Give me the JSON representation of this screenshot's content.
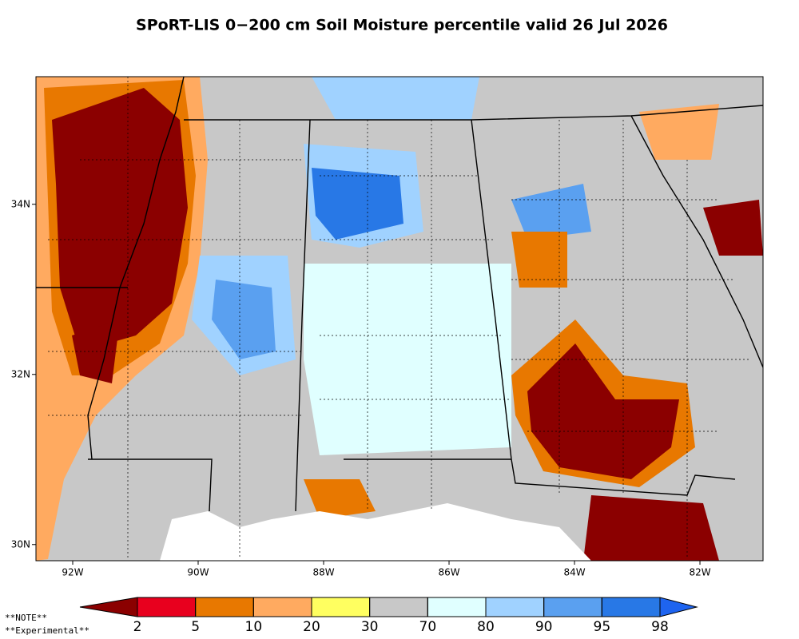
{
  "chart_data": {
    "type": "map",
    "title": "SPoRT-LIS 0−200 cm Soil Moisture percentile valid 26 Jul 2026",
    "xlim": [
      -92.586,
      -80.994
    ],
    "ylim": [
      29.81,
      35.5
    ],
    "xticks": [
      {
        "value": -92,
        "label": "92W"
      },
      {
        "value": -90,
        "label": "90W"
      },
      {
        "value": -88,
        "label": "88W"
      },
      {
        "value": -86,
        "label": "86W"
      },
      {
        "value": -84,
        "label": "84W"
      },
      {
        "value": -82,
        "label": "82W"
      }
    ],
    "yticks": [
      {
        "value": 30,
        "label": "30N"
      },
      {
        "value": 32,
        "label": "32N"
      },
      {
        "value": 34,
        "label": "34N"
      }
    ],
    "colorbar": {
      "levels": [
        2,
        5,
        10,
        20,
        30,
        70,
        80,
        90,
        95,
        98
      ],
      "colors": [
        "#8b0000",
        "#e8001e",
        "#e87800",
        "#ffaa60",
        "#ffff60",
        "#c8c8c8",
        "#e0ffff",
        "#a0d2ff",
        "#5aa0f0",
        "#2878e6",
        "#1e64f0"
      ]
    },
    "notes": [
      "**NOTE**",
      "**Experimental**"
    ]
  }
}
